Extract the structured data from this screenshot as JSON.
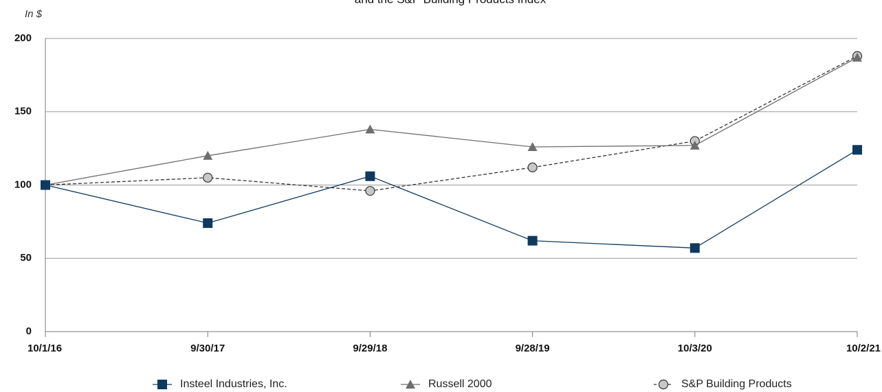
{
  "chart_data": {
    "type": "line",
    "title": "and the S&P Building Products Index",
    "ylabel": "In $",
    "xlabel": "",
    "categories": [
      "10/1/16",
      "9/30/17",
      "9/29/18",
      "9/28/19",
      "10/3/20",
      "10/2/21"
    ],
    "ylim": [
      0,
      200
    ],
    "yticks": [
      "0",
      "50",
      "100",
      "150",
      "200"
    ],
    "grid": true,
    "legend_position": "bottom",
    "series": [
      {
        "name": "Insteel Industries, Inc.",
        "values": [
          100,
          74,
          106,
          62,
          57,
          124
        ],
        "color": "#0f3a5f",
        "marker": "square",
        "dash": "solid"
      },
      {
        "name": "Russell 2000",
        "values": [
          100,
          120,
          138,
          126,
          127,
          187
        ],
        "color": "#6e6e6e",
        "marker": "triangle",
        "dash": "solid"
      },
      {
        "name": "S&P Building Products",
        "values": [
          100,
          105,
          96,
          112,
          130,
          188
        ],
        "color": "#333333",
        "marker": "circle",
        "dash": "dashed"
      }
    ]
  }
}
